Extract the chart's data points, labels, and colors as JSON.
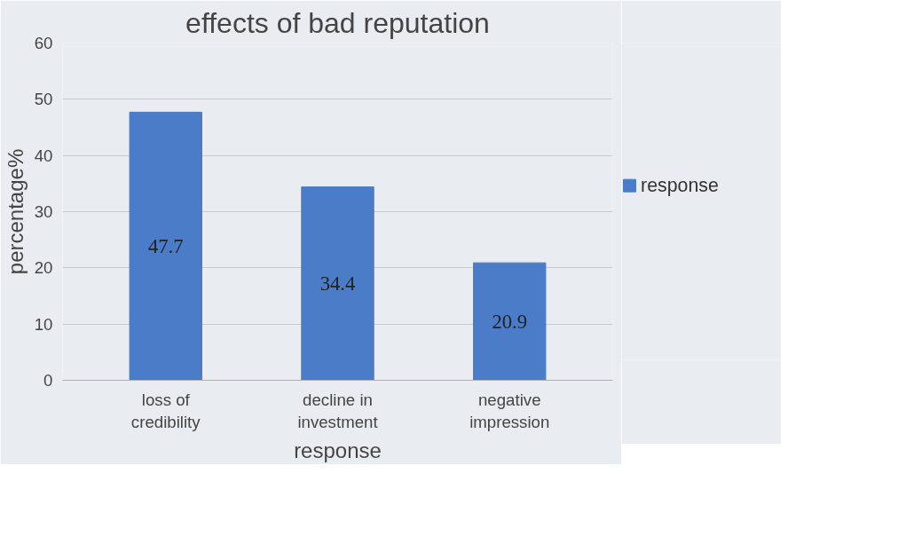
{
  "chart_data": {
    "type": "bar",
    "title": "effects of bad reputation",
    "xlabel": "response",
    "ylabel": "percentage%",
    "categories": [
      "loss of credibility",
      "decline in investment",
      "negative impression"
    ],
    "series": [
      {
        "name": "response",
        "color": "#4a7cc7",
        "values": [
          47.7,
          34.4,
          20.9
        ]
      }
    ],
    "ylim": [
      0,
      60
    ],
    "yticks": [
      0,
      10,
      20,
      30,
      40,
      50,
      60
    ],
    "grid": "y",
    "legend": "right",
    "data_labels": true
  }
}
